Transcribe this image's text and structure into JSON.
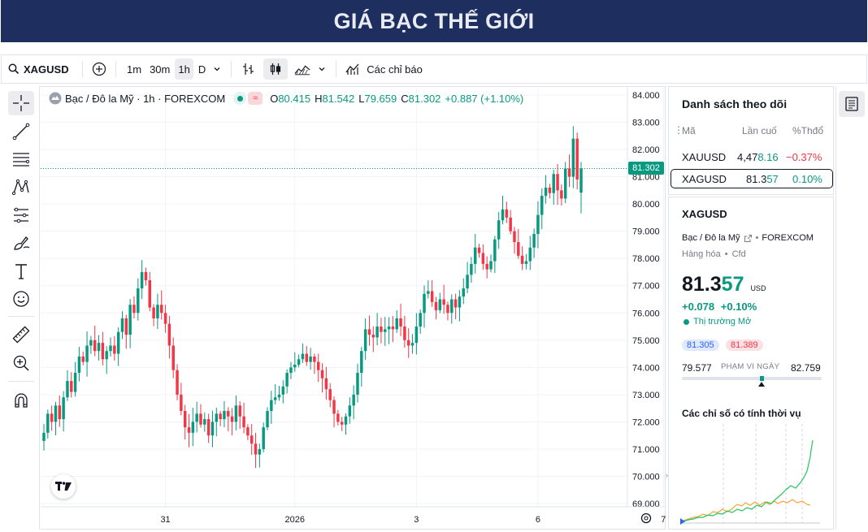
{
  "banner": {
    "title": "GIÁ BẠC THẾ GIỚI"
  },
  "toolbar": {
    "symbol": "XAGUSD",
    "intervals": [
      "1m",
      "30m",
      "1h",
      "D"
    ],
    "active_interval": "1h",
    "indicators_label": "Các chỉ báo"
  },
  "chart": {
    "legend": {
      "name": "Bạc / Đô la Mỹ · 1h · FOREXCOM",
      "o_label": "O",
      "o": "80.415",
      "h_label": "H",
      "h": "81.542",
      "l_label": "L",
      "l": "79.659",
      "c_label": "C",
      "c": "81.302",
      "change": "+0.887 (+1.10%)"
    },
    "last_price_label": "81.302",
    "logo": "TV"
  },
  "chart_data": {
    "type": "candlestick",
    "title": "Bạc / Đô la Mỹ · 1h · FOREXCOM",
    "ylim": [
      68.6,
      84.2
    ],
    "y_ticks": [
      "84.000",
      "83.000",
      "82.000",
      "81.000",
      "80.000",
      "79.000",
      "78.000",
      "77.000",
      "76.000",
      "75.000",
      "74.000",
      "73.000",
      "72.000",
      "71.000",
      "70.000",
      "69.000"
    ],
    "x_tick_labels": [
      {
        "label": "31",
        "index": 31
      },
      {
        "label": "2026",
        "index": 64
      },
      {
        "label": "3",
        "index": 95
      },
      {
        "label": "6",
        "index": 126
      },
      {
        "label": "7",
        "index": 158
      }
    ],
    "last_price": 81.302,
    "closes": [
      71.6,
      72.3,
      72.0,
      72.6,
      72.1,
      72.9,
      73.5,
      73.1,
      73.8,
      74.4,
      74.2,
      74.8,
      75.0,
      74.6,
      74.9,
      74.3,
      74.6,
      74.8,
      74.5,
      75.3,
      75.8,
      75.2,
      76.3,
      76.0,
      76.9,
      77.5,
      77.2,
      76.2,
      75.8,
      76.3,
      76.0,
      75.6,
      74.8,
      73.9,
      73.0,
      72.4,
      71.8,
      71.6,
      72.0,
      72.3,
      71.9,
      72.1,
      71.5,
      72.0,
      72.3,
      72.1,
      72.4,
      72.2,
      72.0,
      72.6,
      72.2,
      71.8,
      71.5,
      71.2,
      70.8,
      71.0,
      71.8,
      72.4,
      72.8,
      72.9,
      73.0,
      73.3,
      73.8,
      74.0,
      74.1,
      74.3,
      74.5,
      74.2,
      74.4,
      74.2,
      73.9,
      73.6,
      73.2,
      72.8,
      72.3,
      72.0,
      71.9,
      72.2,
      72.6,
      73.0,
      73.8,
      74.6,
      75.4,
      75.2,
      75.1,
      75.5,
      75.3,
      75.4,
      75.5,
      75.4,
      75.8,
      75.5,
      75.0,
      74.8,
      74.9,
      75.5,
      76.0,
      76.7,
      76.8,
      76.4,
      76.1,
      76.5,
      76.3,
      76.0,
      76.5,
      76.2,
      76.6,
      76.9,
      77.4,
      77.8,
      78.4,
      78.2,
      77.8,
      77.6,
      77.9,
      78.7,
      79.4,
      79.8,
      79.5,
      79.0,
      78.6,
      78.1,
      77.8,
      77.9,
      78.4,
      78.9,
      79.6,
      80.3,
      80.6,
      80.4,
      81.1,
      80.5,
      80.2,
      81.3,
      81.0,
      82.4,
      80.9,
      81.3
    ],
    "series": [
      {
        "name": "Bạc / Đô la Mỹ",
        "open": 80.415,
        "high": 81.542,
        "low": 79.659,
        "close": 81.302
      }
    ]
  },
  "watchlist": {
    "title": "Danh sách theo dõi",
    "headers": {
      "symbol": "Mã",
      "last": "Lần cuố",
      "change_pct": "%Thđổ"
    },
    "rows": [
      {
        "symbol": "XAUUSD",
        "last_main": "4,47",
        "last_tail": "8.16",
        "change": "−0.37%",
        "direction": "down"
      },
      {
        "symbol": "XAGUSD",
        "last_main": "81.3",
        "last_tail": "57",
        "change": "0.10%",
        "direction": "up"
      }
    ]
  },
  "detail": {
    "symbol": "XAGUSD",
    "name": "Bạc / Đô la Mỹ",
    "exchange": "FOREXCOM",
    "category": "Hàng hóa",
    "type": "Cfd",
    "price_main": "81.3",
    "price_tail": "57",
    "currency": "USD",
    "change_abs": "+0.078",
    "change_pct": "+0.10%",
    "market_status": "Thị trường Mở",
    "bid": "81.305",
    "ask": "81.389",
    "range_low": "79.577",
    "range_label": "PHẠM VI NGÀY",
    "range_high": "82.759",
    "range_position": 0.57,
    "seasonal_title": "Các chỉ số có tính thời vụ"
  },
  "colors": {
    "up": "#089981",
    "down": "#f23645",
    "banner": "#1e2e5e",
    "orange": "#f7a23a",
    "green_line": "#22c55e"
  }
}
